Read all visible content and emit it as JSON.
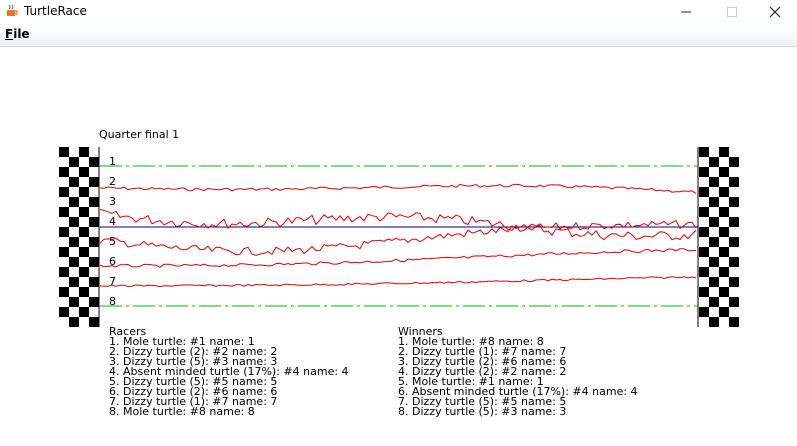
{
  "window": {
    "title": "TurtleRace",
    "icon": "java-cup-icon"
  },
  "menu": {
    "file_label": "File"
  },
  "race": {
    "title": "Quarter final 1",
    "lanes": [
      "1",
      "2",
      "3",
      "4",
      "5",
      "6",
      "7",
      "8"
    ]
  },
  "racers": {
    "header": "Racers",
    "items": [
      "1. Mole turtle: #1 name: 1",
      "2. Dizzy turtle (2): #2 name: 2",
      "3. Dizzy turtle (5): #3 name: 3",
      "4. Absent minded turtle (17%): #4 name: 4",
      "5. Dizzy turtle (5): #5 name: 5",
      "6. Dizzy turtle (2): #6 name: 6",
      "7. Dizzy turtle (1): #7 name: 7",
      "8. Mole turtle: #8 name: 8"
    ]
  },
  "winners": {
    "header": "Winners",
    "items": [
      "1. Mole turtle: #8 name: 8",
      "2. Dizzy turtle (1): #7 name: 7",
      "3. Dizzy turtle (2): #6 name: 6",
      "4. Dizzy turtle (2): #2 name: 2",
      "5. Mole turtle: #1 name: 1",
      "6. Absent minded turtle (17%): #4 name: 4",
      "7. Dizzy turtle (5): #5 name: 5",
      "8. Dizzy turtle (5): #3 name: 3"
    ]
  },
  "colors": {
    "dizzy_path": "#dd0000",
    "mole_path": "#00bb00",
    "absent_path": "#000088",
    "flag_dark": "#000000",
    "flag_light": "#ffffff"
  }
}
